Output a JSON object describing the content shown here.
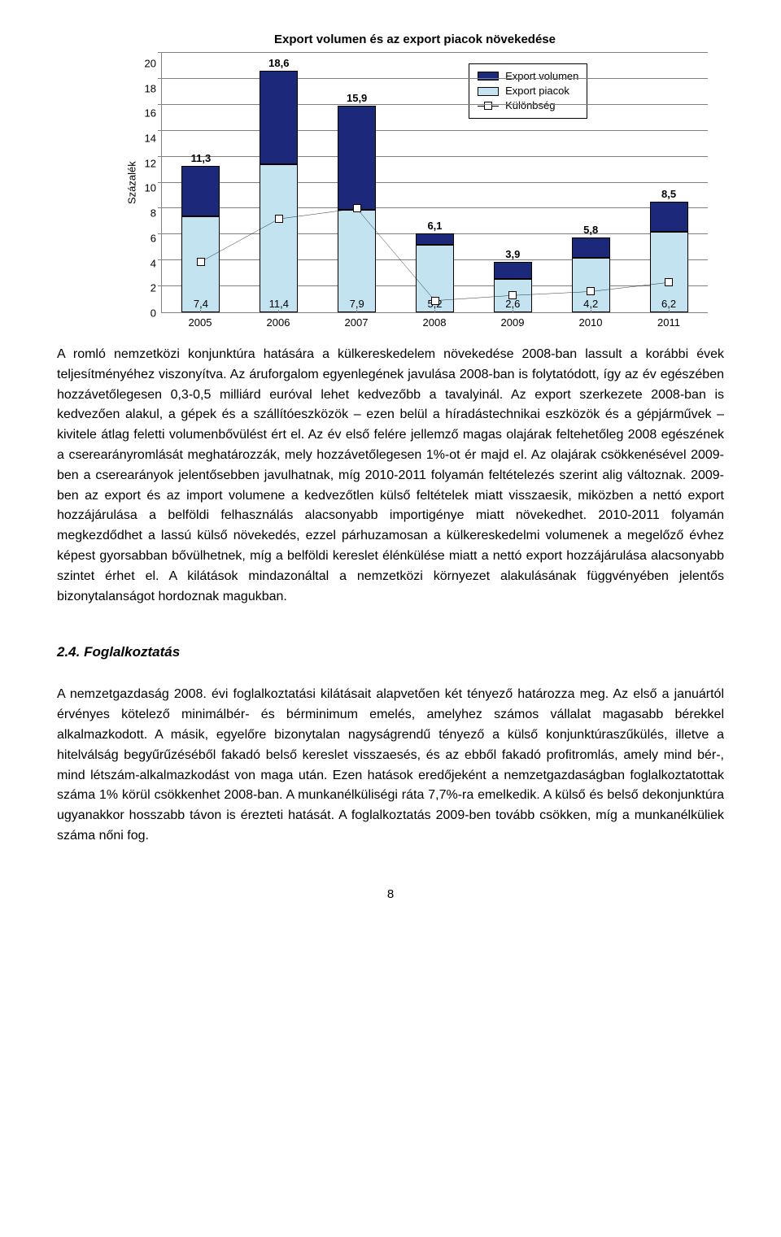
{
  "chart": {
    "type": "stacked-bar-with-line",
    "title": "Export volumen és az export piacok növekedése",
    "y_label": "Százalék",
    "ylim": [
      0,
      20
    ],
    "ytick_step": 2,
    "categories": [
      "2005",
      "2006",
      "2007",
      "2008",
      "2009",
      "2010",
      "2011"
    ],
    "series_piacok": {
      "label": "Export piacok",
      "color": "#c3e3f0",
      "values": [
        7.4,
        11.4,
        7.9,
        5.2,
        2.6,
        4.2,
        6.2
      ],
      "value_labels": [
        "7,4",
        "11,4",
        "7,9",
        "5,2",
        "2,6",
        "4,2",
        "6,2"
      ]
    },
    "series_volumen": {
      "label": "Export volumen",
      "color": "#1c2879",
      "values": [
        11.3,
        18.6,
        15.9,
        6.1,
        3.9,
        5.8,
        8.5
      ],
      "value_labels": [
        "11,3",
        "18,6",
        "15,9",
        "6,1",
        "3,9",
        "5,8",
        "8,5"
      ]
    },
    "series_diff": {
      "label": "Különbség",
      "values": [
        3.9,
        7.2,
        8.0,
        0.9,
        1.3,
        1.6,
        2.3
      ]
    },
    "grid_color": "#808080",
    "background_color": "#ffffff",
    "bar_width_pct": 7,
    "title_fontsize": 15,
    "label_fontsize": 13
  },
  "paragraph1": "A romló nemzetközi konjunktúra hatására a külkereskedelem növekedése 2008-ban lassult a korábbi évek teljesítményéhez viszonyítva. Az áruforgalom egyenlegének javulása 2008-ban is folytatódott, így az év egészében hozzávetőlegesen 0,3-0,5 milliárd euróval lehet kedvezőbb a tavalyinál. Az export szerkezete 2008-ban is kedvezően alakul, a gépek és a szállítóeszközök – ezen belül a híradástechnikai eszközök és a gépjárművek – kivitele átlag feletti volumenbővülést ért el. Az év első felére jellemző magas olajárak feltehetőleg 2008 egészének a cserearányromlását meghatározzák, mely hozzávetőlegesen 1%-ot ér majd el. Az olajárak csökkenésével 2009-ben a cserearányok jelentősebben javulhatnak, míg 2010-2011 folyamán feltételezés szerint alig változnak. 2009-ben az export és az import volumene a kedvezőtlen külső feltételek miatt visszaesik, miközben a nettó export hozzájárulása a belföldi felhasználás alacsonyabb importigénye miatt növekedhet. 2010-2011 folyamán megkezdődhet a lassú külső növekedés, ezzel párhuzamosan a külkereskedelmi volumenek a megelőző évhez képest gyorsabban bővülhetnek, míg a belföldi kereslet élénkülése miatt a nettó export hozzájárulása alacsonyabb szintet érhet el. A kilátások mindazonáltal a nemzetközi környezet alakulásának függvényében jelentős bizonytalanságot hordoznak magukban.",
  "section_heading": "2.4.  Foglalkoztatás",
  "paragraph2": "A nemzetgazdaság 2008. évi foglalkoztatási kilátásait alapvetően két tényező határozza meg. Az első a januártól érvényes kötelező minimálbér- és bérminimum emelés, amelyhez számos vállalat magasabb bérekkel alkalmazkodott. A másik, egyelőre bizonytalan nagyságrendű tényező a külső konjunktúraszűkülés, illetve a hitelválság begyűrűzéséből fakadó belső kereslet visszaesés, és az ebből fakadó profitromlás, amely mind bér-, mind létszám-alkalmazkodást von maga után. Ezen hatások eredőjeként a nemzetgazdaságban foglalkoztatottak száma 1% körül csökkenhet 2008-ban. A munkanélküliségi ráta 7,7%-ra emelkedik. A külső és belső dekonjunktúra ugyanakkor hosszabb távon is érezteti hatását. A foglalkoztatás 2009-ben tovább csökken, míg a munkanélküliek száma nőni fog.",
  "page_number": "8"
}
